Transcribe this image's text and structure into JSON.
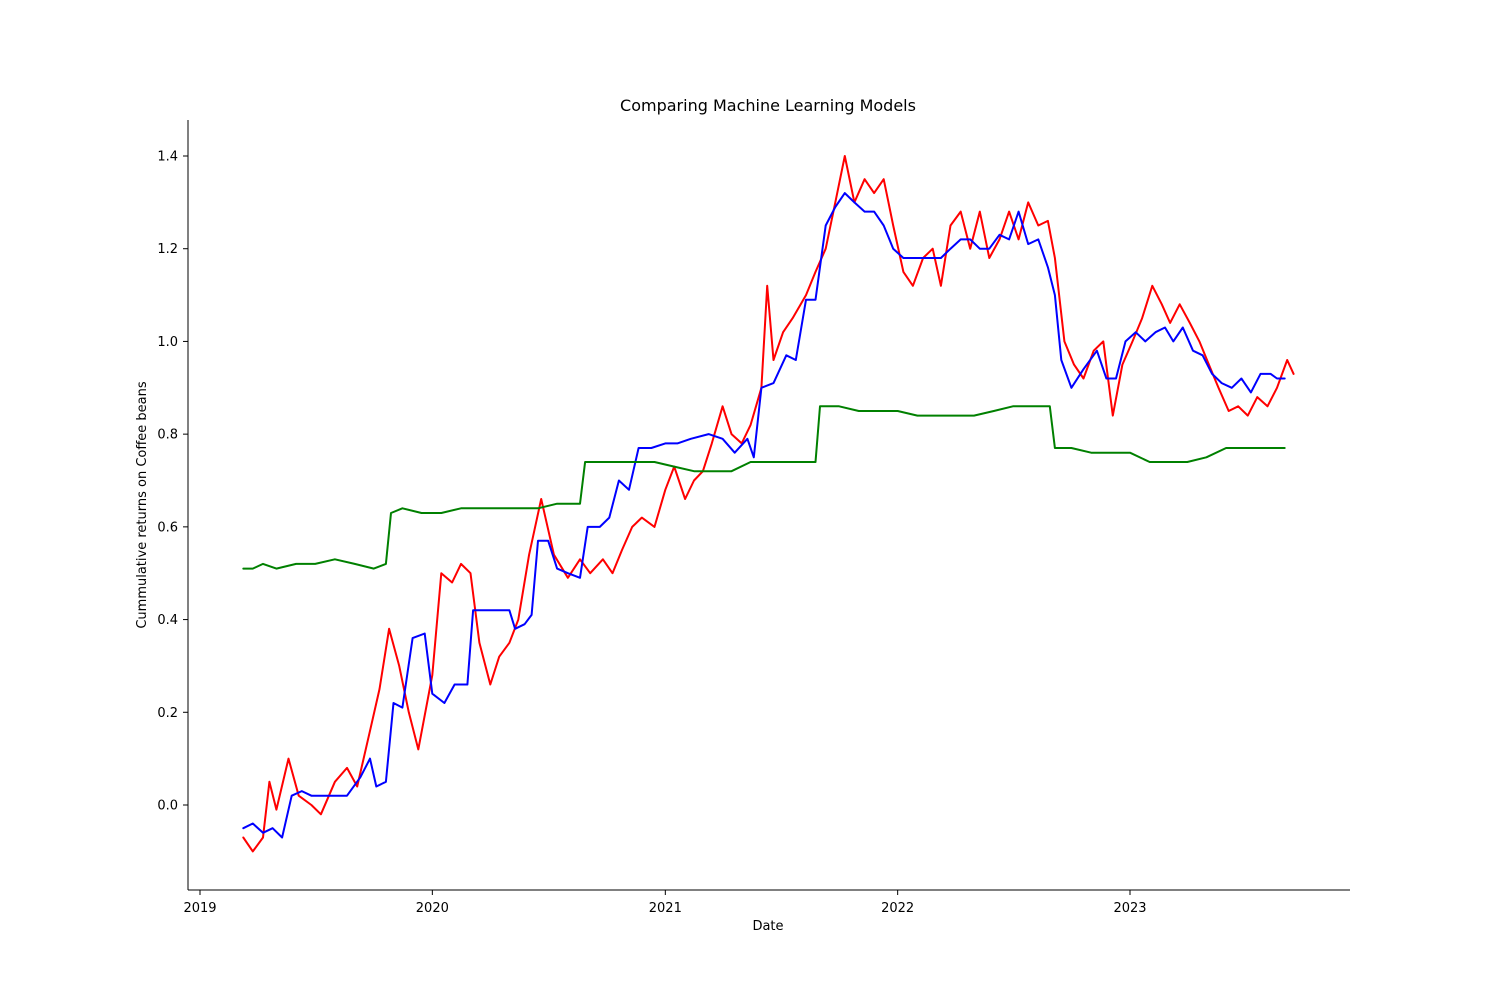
{
  "chart_data": {
    "type": "line",
    "title": "Comparing Machine Learning Models",
    "xlabel": "Date",
    "ylabel": "Cummulative returns on Coffee beans",
    "xlim": [
      "2019-01-01",
      "2023-12-31"
    ],
    "ylim": [
      -0.18,
      1.48
    ],
    "xticks": [
      {
        "date": "2019-01-01",
        "label": "2019"
      },
      {
        "date": "2020-01-01",
        "label": "2020"
      },
      {
        "date": "2021-01-01",
        "label": "2021"
      },
      {
        "date": "2022-01-01",
        "label": "2022"
      },
      {
        "date": "2023-01-01",
        "label": "2023"
      }
    ],
    "yticks": [
      {
        "value": 0.0,
        "label": "0.0"
      },
      {
        "value": 0.2,
        "label": "0.2"
      },
      {
        "value": 0.4,
        "label": "0.4"
      },
      {
        "value": 0.6,
        "label": "0.6"
      },
      {
        "value": 0.8,
        "label": "0.8"
      },
      {
        "value": 1.0,
        "label": "1.0"
      },
      {
        "value": 1.2,
        "label": "1.2"
      },
      {
        "value": 1.4,
        "label": "1.4"
      }
    ],
    "grid": false,
    "series": [
      {
        "color": "#ff0000",
        "points": [
          [
            "2019-03-10",
            -0.07
          ],
          [
            "2019-03-25",
            -0.1
          ],
          [
            "2019-04-10",
            -0.07
          ],
          [
            "2019-04-20",
            0.05
          ],
          [
            "2019-05-01",
            -0.01
          ],
          [
            "2019-05-20",
            0.1
          ],
          [
            "2019-06-05",
            0.02
          ],
          [
            "2019-06-25",
            0.0
          ],
          [
            "2019-07-10",
            -0.02
          ],
          [
            "2019-08-01",
            0.05
          ],
          [
            "2019-08-20",
            0.08
          ],
          [
            "2019-09-05",
            0.04
          ],
          [
            "2019-09-25",
            0.16
          ],
          [
            "2019-10-10",
            0.25
          ],
          [
            "2019-10-25",
            0.38
          ],
          [
            "2019-11-10",
            0.3
          ],
          [
            "2019-11-25",
            0.2
          ],
          [
            "2019-12-10",
            0.12
          ],
          [
            "2020-01-01",
            0.28
          ],
          [
            "2020-01-15",
            0.5
          ],
          [
            "2020-02-01",
            0.48
          ],
          [
            "2020-02-15",
            0.52
          ],
          [
            "2020-03-01",
            0.5
          ],
          [
            "2020-03-15",
            0.35
          ],
          [
            "2020-04-01",
            0.26
          ],
          [
            "2020-04-15",
            0.32
          ],
          [
            "2020-05-01",
            0.35
          ],
          [
            "2020-05-15",
            0.4
          ],
          [
            "2020-06-01",
            0.54
          ],
          [
            "2020-06-20",
            0.66
          ],
          [
            "2020-07-10",
            0.54
          ],
          [
            "2020-08-01",
            0.49
          ],
          [
            "2020-08-20",
            0.53
          ],
          [
            "2020-09-05",
            0.5
          ],
          [
            "2020-09-25",
            0.53
          ],
          [
            "2020-10-10",
            0.5
          ],
          [
            "2020-10-25",
            0.55
          ],
          [
            "2020-11-10",
            0.6
          ],
          [
            "2020-11-25",
            0.62
          ],
          [
            "2020-12-15",
            0.6
          ],
          [
            "2021-01-01",
            0.68
          ],
          [
            "2021-01-15",
            0.73
          ],
          [
            "2021-02-01",
            0.66
          ],
          [
            "2021-02-15",
            0.7
          ],
          [
            "2021-03-01",
            0.72
          ],
          [
            "2021-03-15",
            0.78
          ],
          [
            "2021-04-01",
            0.86
          ],
          [
            "2021-04-15",
            0.8
          ],
          [
            "2021-05-01",
            0.78
          ],
          [
            "2021-05-15",
            0.82
          ],
          [
            "2021-06-01",
            0.9
          ],
          [
            "2021-06-10",
            1.12
          ],
          [
            "2021-06-20",
            0.96
          ],
          [
            "2021-07-05",
            1.02
          ],
          [
            "2021-07-20",
            1.05
          ],
          [
            "2021-08-10",
            1.1
          ],
          [
            "2021-08-25",
            1.15
          ],
          [
            "2021-09-10",
            1.2
          ],
          [
            "2021-09-25",
            1.3
          ],
          [
            "2021-10-10",
            1.4
          ],
          [
            "2021-10-25",
            1.3
          ],
          [
            "2021-11-10",
            1.35
          ],
          [
            "2021-11-25",
            1.32
          ],
          [
            "2021-12-10",
            1.35
          ],
          [
            "2021-12-25",
            1.25
          ],
          [
            "2022-01-10",
            1.15
          ],
          [
            "2022-01-25",
            1.12
          ],
          [
            "2022-02-10",
            1.18
          ],
          [
            "2022-02-25",
            1.2
          ],
          [
            "2022-03-10",
            1.12
          ],
          [
            "2022-03-25",
            1.25
          ],
          [
            "2022-04-10",
            1.28
          ],
          [
            "2022-04-25",
            1.2
          ],
          [
            "2022-05-10",
            1.28
          ],
          [
            "2022-05-25",
            1.18
          ],
          [
            "2022-06-10",
            1.22
          ],
          [
            "2022-06-25",
            1.28
          ],
          [
            "2022-07-10",
            1.22
          ],
          [
            "2022-07-25",
            1.3
          ],
          [
            "2022-08-10",
            1.25
          ],
          [
            "2022-08-25",
            1.26
          ],
          [
            "2022-09-05",
            1.18
          ],
          [
            "2022-09-20",
            1.0
          ],
          [
            "2022-10-05",
            0.95
          ],
          [
            "2022-10-20",
            0.92
          ],
          [
            "2022-11-05",
            0.98
          ],
          [
            "2022-11-20",
            1.0
          ],
          [
            "2022-12-05",
            0.84
          ],
          [
            "2022-12-20",
            0.95
          ],
          [
            "2023-01-05",
            1.0
          ],
          [
            "2023-01-20",
            1.05
          ],
          [
            "2023-02-05",
            1.12
          ],
          [
            "2023-02-20",
            1.08
          ],
          [
            "2023-03-05",
            1.04
          ],
          [
            "2023-03-20",
            1.08
          ],
          [
            "2023-04-05",
            1.04
          ],
          [
            "2023-04-20",
            1.0
          ],
          [
            "2023-05-05",
            0.95
          ],
          [
            "2023-05-20",
            0.9
          ],
          [
            "2023-06-05",
            0.85
          ],
          [
            "2023-06-20",
            0.86
          ],
          [
            "2023-07-05",
            0.84
          ],
          [
            "2023-07-20",
            0.88
          ],
          [
            "2023-08-05",
            0.86
          ],
          [
            "2023-08-20",
            0.9
          ],
          [
            "2023-09-05",
            0.96
          ],
          [
            "2023-09-15",
            0.93
          ]
        ]
      },
      {
        "color": "#0000ff",
        "points": [
          [
            "2019-03-10",
            -0.05
          ],
          [
            "2019-03-25",
            -0.04
          ],
          [
            "2019-04-10",
            -0.06
          ],
          [
            "2019-04-25",
            -0.05
          ],
          [
            "2019-05-10",
            -0.07
          ],
          [
            "2019-05-25",
            0.02
          ],
          [
            "2019-06-10",
            0.03
          ],
          [
            "2019-06-25",
            0.02
          ],
          [
            "2019-07-10",
            0.02
          ],
          [
            "2019-08-01",
            0.02
          ],
          [
            "2019-08-20",
            0.02
          ],
          [
            "2019-09-10",
            0.06
          ],
          [
            "2019-09-25",
            0.1
          ],
          [
            "2019-10-05",
            0.04
          ],
          [
            "2019-10-20",
            0.05
          ],
          [
            "2019-11-01",
            0.22
          ],
          [
            "2019-11-15",
            0.21
          ],
          [
            "2019-12-01",
            0.36
          ],
          [
            "2019-12-20",
            0.37
          ],
          [
            "2020-01-01",
            0.24
          ],
          [
            "2020-01-20",
            0.22
          ],
          [
            "2020-02-05",
            0.26
          ],
          [
            "2020-02-25",
            0.26
          ],
          [
            "2020-03-05",
            0.42
          ],
          [
            "2020-04-01",
            0.42
          ],
          [
            "2020-05-01",
            0.42
          ],
          [
            "2020-05-10",
            0.38
          ],
          [
            "2020-05-25",
            0.39
          ],
          [
            "2020-06-05",
            0.41
          ],
          [
            "2020-06-15",
            0.57
          ],
          [
            "2020-07-01",
            0.57
          ],
          [
            "2020-07-15",
            0.51
          ],
          [
            "2020-08-01",
            0.5
          ],
          [
            "2020-08-20",
            0.49
          ],
          [
            "2020-09-01",
            0.6
          ],
          [
            "2020-09-20",
            0.6
          ],
          [
            "2020-10-05",
            0.62
          ],
          [
            "2020-10-20",
            0.7
          ],
          [
            "2020-11-05",
            0.68
          ],
          [
            "2020-11-20",
            0.77
          ],
          [
            "2020-12-10",
            0.77
          ],
          [
            "2021-01-01",
            0.78
          ],
          [
            "2021-01-20",
            0.78
          ],
          [
            "2021-02-10",
            0.79
          ],
          [
            "2021-03-10",
            0.8
          ],
          [
            "2021-04-01",
            0.79
          ],
          [
            "2021-04-20",
            0.76
          ],
          [
            "2021-05-10",
            0.79
          ],
          [
            "2021-05-20",
            0.75
          ],
          [
            "2021-06-01",
            0.9
          ],
          [
            "2021-06-20",
            0.91
          ],
          [
            "2021-07-10",
            0.97
          ],
          [
            "2021-07-25",
            0.96
          ],
          [
            "2021-08-10",
            1.09
          ],
          [
            "2021-08-25",
            1.09
          ],
          [
            "2021-09-10",
            1.25
          ],
          [
            "2021-09-25",
            1.29
          ],
          [
            "2021-10-10",
            1.32
          ],
          [
            "2021-10-25",
            1.3
          ],
          [
            "2021-11-10",
            1.28
          ],
          [
            "2021-11-25",
            1.28
          ],
          [
            "2021-12-10",
            1.25
          ],
          [
            "2021-12-25",
            1.2
          ],
          [
            "2022-01-10",
            1.18
          ],
          [
            "2022-01-25",
            1.18
          ],
          [
            "2022-02-10",
            1.18
          ],
          [
            "2022-02-25",
            1.18
          ],
          [
            "2022-03-10",
            1.18
          ],
          [
            "2022-03-25",
            1.2
          ],
          [
            "2022-04-10",
            1.22
          ],
          [
            "2022-04-25",
            1.22
          ],
          [
            "2022-05-10",
            1.2
          ],
          [
            "2022-05-25",
            1.2
          ],
          [
            "2022-06-10",
            1.23
          ],
          [
            "2022-06-25",
            1.22
          ],
          [
            "2022-07-10",
            1.28
          ],
          [
            "2022-07-25",
            1.21
          ],
          [
            "2022-08-10",
            1.22
          ],
          [
            "2022-08-25",
            1.16
          ],
          [
            "2022-09-05",
            1.1
          ],
          [
            "2022-09-15",
            0.96
          ],
          [
            "2022-10-01",
            0.9
          ],
          [
            "2022-10-20",
            0.94
          ],
          [
            "2022-11-10",
            0.98
          ],
          [
            "2022-11-25",
            0.92
          ],
          [
            "2022-12-10",
            0.92
          ],
          [
            "2022-12-25",
            1.0
          ],
          [
            "2023-01-10",
            1.02
          ],
          [
            "2023-01-25",
            1.0
          ],
          [
            "2023-02-10",
            1.02
          ],
          [
            "2023-02-25",
            1.03
          ],
          [
            "2023-03-10",
            1.0
          ],
          [
            "2023-03-25",
            1.03
          ],
          [
            "2023-04-10",
            0.98
          ],
          [
            "2023-04-25",
            0.97
          ],
          [
            "2023-05-10",
            0.93
          ],
          [
            "2023-05-25",
            0.91
          ],
          [
            "2023-06-10",
            0.9
          ],
          [
            "2023-06-25",
            0.92
          ],
          [
            "2023-07-10",
            0.89
          ],
          [
            "2023-07-25",
            0.93
          ],
          [
            "2023-08-10",
            0.93
          ],
          [
            "2023-08-20",
            0.92
          ],
          [
            "2023-09-01",
            0.92
          ]
        ]
      },
      {
        "color": "#008000",
        "points": [
          [
            "2019-03-10",
            0.51
          ],
          [
            "2019-03-25",
            0.51
          ],
          [
            "2019-04-10",
            0.52
          ],
          [
            "2019-05-01",
            0.51
          ],
          [
            "2019-06-01",
            0.52
          ],
          [
            "2019-07-01",
            0.52
          ],
          [
            "2019-08-01",
            0.53
          ],
          [
            "2019-09-01",
            0.52
          ],
          [
            "2019-10-01",
            0.51
          ],
          [
            "2019-10-20",
            0.52
          ],
          [
            "2019-10-28",
            0.63
          ],
          [
            "2019-11-15",
            0.64
          ],
          [
            "2019-12-15",
            0.63
          ],
          [
            "2020-01-15",
            0.63
          ],
          [
            "2020-02-15",
            0.64
          ],
          [
            "2020-04-01",
            0.64
          ],
          [
            "2020-05-15",
            0.64
          ],
          [
            "2020-06-15",
            0.64
          ],
          [
            "2020-07-15",
            0.65
          ],
          [
            "2020-08-20",
            0.65
          ],
          [
            "2020-08-28",
            0.74
          ],
          [
            "2020-09-20",
            0.74
          ],
          [
            "2020-10-20",
            0.74
          ],
          [
            "2020-11-20",
            0.74
          ],
          [
            "2020-12-15",
            0.74
          ],
          [
            "2021-01-15",
            0.73
          ],
          [
            "2021-02-15",
            0.72
          ],
          [
            "2021-03-15",
            0.72
          ],
          [
            "2021-04-15",
            0.72
          ],
          [
            "2021-05-15",
            0.74
          ],
          [
            "2021-06-15",
            0.74
          ],
          [
            "2021-07-15",
            0.74
          ],
          [
            "2021-08-10",
            0.74
          ],
          [
            "2021-08-25",
            0.74
          ],
          [
            "2021-09-01",
            0.86
          ],
          [
            "2021-10-01",
            0.86
          ],
          [
            "2021-11-01",
            0.85
          ],
          [
            "2021-12-01",
            0.85
          ],
          [
            "2022-01-01",
            0.85
          ],
          [
            "2022-02-01",
            0.84
          ],
          [
            "2022-03-01",
            0.84
          ],
          [
            "2022-04-01",
            0.84
          ],
          [
            "2022-05-01",
            0.84
          ],
          [
            "2022-06-01",
            0.85
          ],
          [
            "2022-07-01",
            0.86
          ],
          [
            "2022-08-01",
            0.86
          ],
          [
            "2022-08-28",
            0.86
          ],
          [
            "2022-09-05",
            0.77
          ],
          [
            "2022-10-01",
            0.77
          ],
          [
            "2022-11-01",
            0.76
          ],
          [
            "2022-12-01",
            0.76
          ],
          [
            "2023-01-01",
            0.76
          ],
          [
            "2023-02-01",
            0.74
          ],
          [
            "2023-03-01",
            0.74
          ],
          [
            "2023-04-01",
            0.74
          ],
          [
            "2023-05-01",
            0.75
          ],
          [
            "2023-06-01",
            0.77
          ],
          [
            "2023-07-01",
            0.77
          ],
          [
            "2023-08-01",
            0.77
          ],
          [
            "2023-09-01",
            0.77
          ]
        ]
      }
    ]
  }
}
